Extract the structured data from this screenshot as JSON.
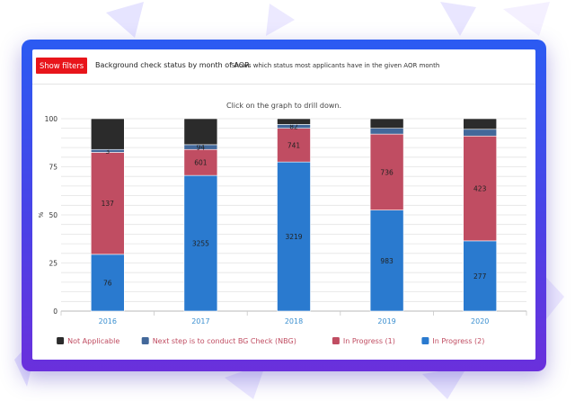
{
  "toolbar": {
    "filters_label": "Show filters",
    "title": "Background check status by month of AOR",
    "subtitle": "Shows which status most applicants have in the given AOR month"
  },
  "colors": {
    "frame_top": "#2b5bf2",
    "frame_bottom": "#6a30dc",
    "button": "#e8151b",
    "not_applicable": "#2b2b2b",
    "next_step": "#43689a",
    "in_progress_1": "#c04d62",
    "in_progress_2": "#2a7acf",
    "category_label": "#3a8fd0"
  },
  "chart_data": {
    "type": "bar",
    "stacked": true,
    "hint": "Click on the graph to drill down.",
    "title": "",
    "xlabel": "",
    "ylabel": "%",
    "ylim": [
      0,
      100
    ],
    "yticks": [
      0,
      25,
      50,
      75,
      100
    ],
    "categories": [
      "2016",
      "2017",
      "2018",
      "2019",
      "2020"
    ],
    "legend_position": "bottom",
    "series": [
      {
        "name": "In Progress (2)",
        "color": "#2a7acf",
        "values": [
          29.5,
          70.5,
          77.5,
          52.5,
          36.5
        ],
        "labels": [
          "76",
          "3255",
          "3219",
          "983",
          "277"
        ]
      },
      {
        "name": "In Progress (1)",
        "color": "#c04d62",
        "values": [
          53,
          13.5,
          17.5,
          39.5,
          54.5
        ],
        "labels": [
          "137",
          "601",
          "741",
          "736",
          "423"
        ]
      },
      {
        "name": "Next step is to conduct BG Check (NBG)",
        "color": "#43689a",
        "values": [
          1.5,
          2.5,
          2,
          3,
          3.5
        ],
        "labels": [
          "3",
          "94",
          "82",
          "",
          ""
        ]
      },
      {
        "name": "Not Applicable",
        "color": "#2b2b2b",
        "values": [
          16,
          13.5,
          3,
          5,
          5.5
        ],
        "labels": [
          "",
          "",
          "",
          "",
          ""
        ]
      }
    ],
    "legend_order": [
      "Not Applicable",
      "Next step is to conduct BG Check (NBG)",
      "In Progress (1)",
      "In Progress (2)"
    ]
  }
}
